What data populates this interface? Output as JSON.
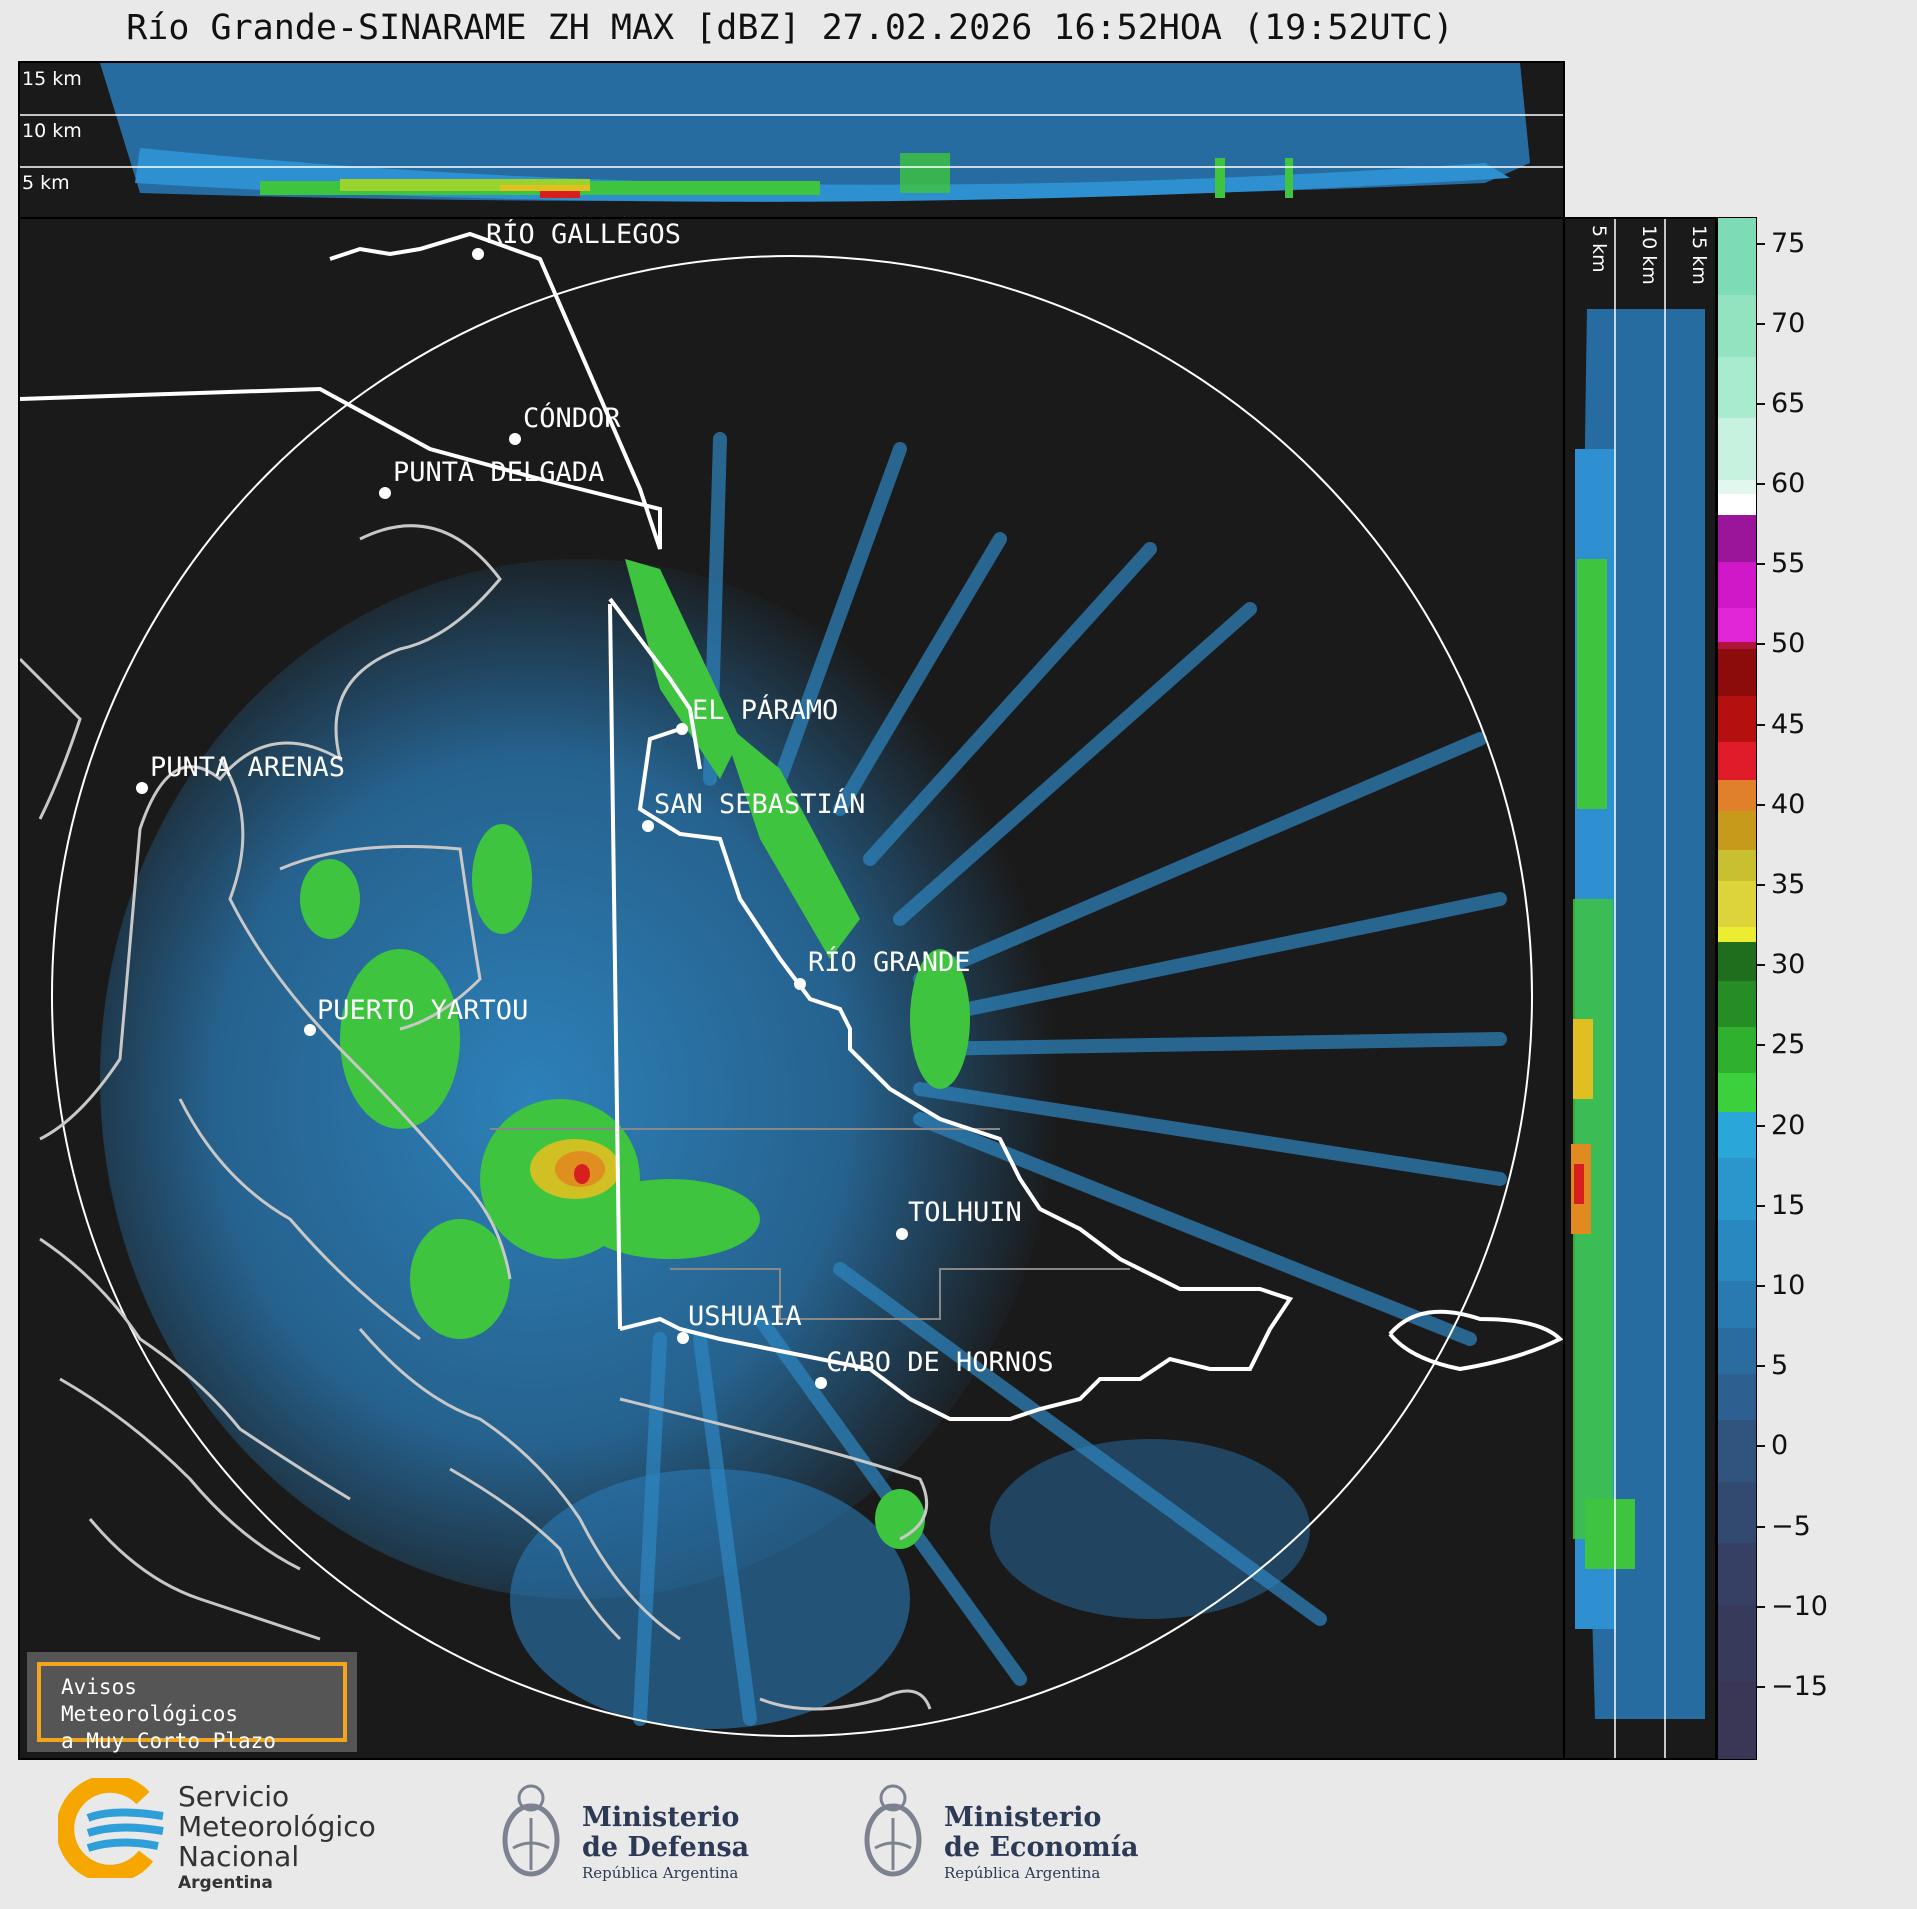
{
  "title": "Río Grande-SINARAME ZH MAX [dBZ] 27.02.2026 16:52HOA (19:52UTC)",
  "height_labels": {
    "h15": "15 km",
    "h10": "10 km",
    "h5": "5 km"
  },
  "cities": [
    {
      "name": "RÍO GALLEGOS"
    },
    {
      "name": "CÓNDOR"
    },
    {
      "name": "PUNTA DELGADA"
    },
    {
      "name": "EL PÁRAMO"
    },
    {
      "name": "PUNTA ARENAS"
    },
    {
      "name": "SAN SEBASTIÁN"
    },
    {
      "name": "RÍO GRANDE"
    },
    {
      "name": "PUERTO YARTOU"
    },
    {
      "name": "TOLHUIN"
    },
    {
      "name": "USHUAIA"
    },
    {
      "name": "CABO DE HORNOS"
    }
  ],
  "colorbar": {
    "unit": "dBZ",
    "ticks": [
      "75",
      "70",
      "65",
      "60",
      "55",
      "50",
      "45",
      "40",
      "35",
      "30",
      "25",
      "20",
      "15",
      "10",
      "5",
      "0",
      "−5",
      "−10",
      "−15"
    ],
    "range": [
      -20,
      76
    ]
  },
  "warning_box": {
    "line1": "Avisos Meteorológicos",
    "line2": "a Muy Corto Plazo"
  },
  "footer": {
    "smn": {
      "line1": "Servicio",
      "line2": "Meteorológico",
      "line3": "Nacional",
      "line4": "Argentina"
    },
    "defensa": {
      "line1": "Ministerio",
      "line2": "de Defensa",
      "line3": "República Argentina"
    },
    "economia": {
      "line1": "Ministerio",
      "line2": "de Economía",
      "line3": "República Argentina"
    }
  },
  "colors": {
    "background": "#1a1a1a",
    "low_echo": "#2e86c1",
    "mid_echo": "#3ec43e",
    "high_echo": "#e0c020",
    "max_echo": "#d81f1f",
    "smn_orange": "#f5a700",
    "smn_blue": "#2e9fd8"
  }
}
